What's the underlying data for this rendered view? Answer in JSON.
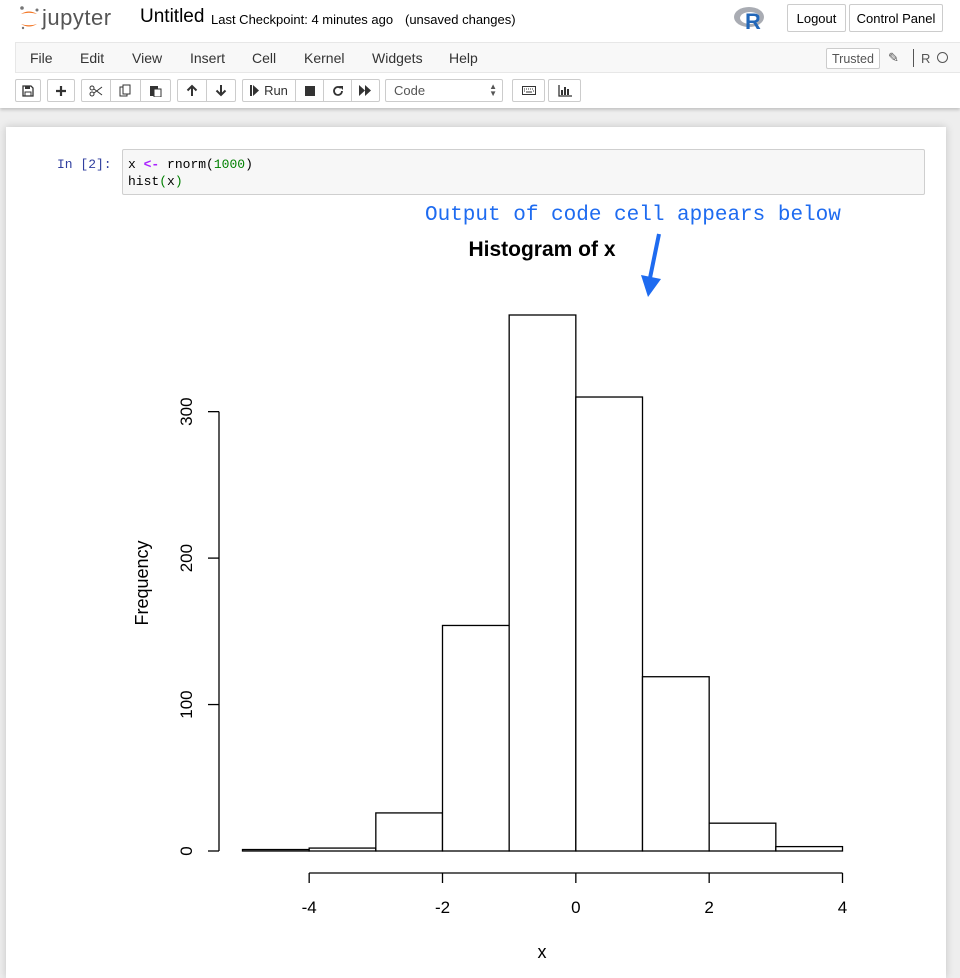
{
  "header": {
    "logo_text": "jupyter",
    "notebook_name": "Untitled",
    "checkpoint": "Last Checkpoint: 4 minutes ago",
    "save_status": "(unsaved changes)",
    "logout_label": "Logout",
    "control_panel_label": "Control Panel"
  },
  "menubar": {
    "items": [
      "File",
      "Edit",
      "View",
      "Insert",
      "Cell",
      "Kernel",
      "Widgets",
      "Help"
    ],
    "trusted_label": "Trusted",
    "kernel_label": "R"
  },
  "toolbar": {
    "run_label": "Run",
    "cell_type": "Code"
  },
  "cell": {
    "prompt": "In [2]:",
    "code_line1": {
      "var": "x",
      "op": "<-",
      "fn": "rnorm(",
      "arg": "1000",
      "close": ")"
    },
    "code_line2": {
      "fn": "hist",
      "open": "(",
      "arg": "x",
      "close": ")"
    }
  },
  "annotation": {
    "text": "Output of code cell appears below",
    "color": "#1e6bf0"
  },
  "chart_data": {
    "type": "bar",
    "title": "Histogram of x",
    "xlabel": "x",
    "ylabel": "Frequency",
    "bin_edges": [
      -5,
      -4,
      -3,
      -2,
      -1,
      0,
      1,
      2,
      3,
      4
    ],
    "values": [
      1,
      2,
      26,
      154,
      366,
      310,
      119,
      19,
      3
    ],
    "xticks": [
      -4,
      -2,
      0,
      2,
      4
    ],
    "yticks": [
      0,
      100,
      200,
      300
    ],
    "xlim": [
      -5,
      4
    ],
    "ylim": [
      0,
      366
    ]
  }
}
